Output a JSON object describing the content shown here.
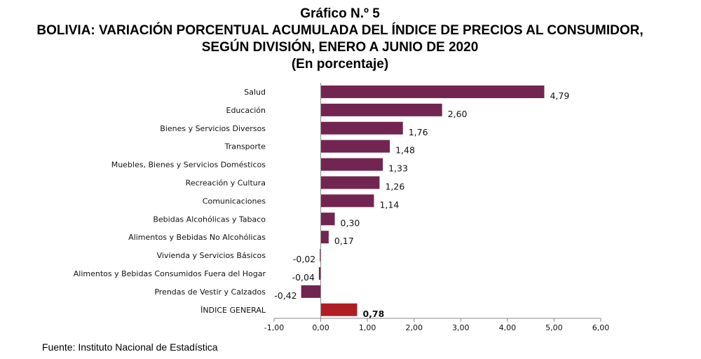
{
  "header": {
    "line1": "Gráfico N.º 5",
    "line2": "BOLIVIA: VARIACIÓN PORCENTUAL ACUMULADA DEL ÍNDICE DE PRECIOS AL CONSUMIDOR,",
    "line3": "SEGÚN DIVISIÓN, ENERO A JUNIO DE 2020",
    "line4": "(En porcentaje)"
  },
  "source": "Fuente: Instituto Nacional de Estadística",
  "chart_data": {
    "type": "bar",
    "orientation": "horizontal",
    "title": "BOLIVIA: VARIACIÓN PORCENTUAL ACUMULADA DEL ÍNDICE DE PRECIOS AL CONSUMIDOR, SEGÚN DIVISIÓN, ENERO A JUNIO DE 2020",
    "categories": [
      "Salud",
      "Educación",
      "Bienes y Servicios Diversos",
      "Transporte",
      "Muebles, Bienes y Servicios Domésticos",
      "Recreación y Cultura",
      "Comunicaciones",
      "Bebidas Alcohólicas y Tabaco",
      "Alimentos y Bebidas No Alcohólicas",
      "Vivienda y Servicios Básicos",
      "Alimentos y Bebidas Consumidos Fuera del Hogar",
      "Prendas de Vestir y Calzados",
      "ÍNDICE GENERAL"
    ],
    "values": [
      4.79,
      2.6,
      1.76,
      1.48,
      1.33,
      1.26,
      1.14,
      0.3,
      0.17,
      -0.02,
      -0.04,
      -0.42,
      0.78
    ],
    "value_labels": [
      "4,79",
      "2,60",
      "1,76",
      "1,48",
      "1,33",
      "1,26",
      "1,14",
      "0,30",
      "0,17",
      "-0,02",
      "-0,04",
      "-0,42",
      "0,78"
    ],
    "highlight_index": 12,
    "xlim": [
      -1,
      6
    ],
    "xticks": [
      -1,
      0,
      1,
      2,
      3,
      4,
      5,
      6
    ],
    "xtick_labels": [
      "-1,00",
      "0,00",
      "1,00",
      "2,00",
      "3,00",
      "4,00",
      "5,00",
      "6,00"
    ],
    "grid": false,
    "colors": {
      "bar": "#722550",
      "highlight": "#b01e23",
      "axis": "#888888"
    }
  }
}
